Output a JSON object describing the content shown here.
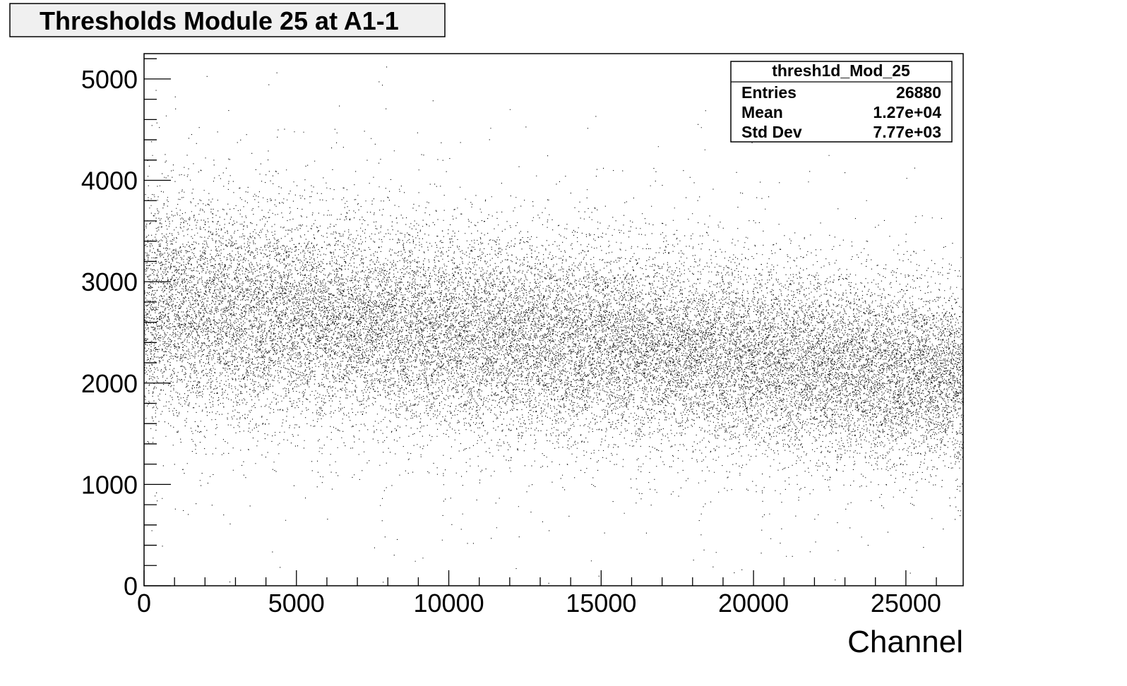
{
  "title": "Thresholds Module 25 at A1-1",
  "stats": {
    "name": "thresh1d_Mod_25",
    "rows": [
      {
        "label": "Entries",
        "value": "26880"
      },
      {
        "label": "Mean",
        "value": "1.27e+04"
      },
      {
        "label": "Std Dev",
        "value": "7.77e+03"
      }
    ]
  },
  "chart_data": {
    "type": "scatter",
    "title": "Thresholds Module 25 at A1-1",
    "xlabel": "Channel",
    "ylabel": "",
    "xlim": [
      0,
      26880
    ],
    "ylim": [
      0,
      5250
    ],
    "x_ticks": [
      0,
      5000,
      10000,
      15000,
      20000,
      25000
    ],
    "y_ticks": [
      0,
      1000,
      2000,
      3000,
      4000,
      5000
    ],
    "x_tick_labels": [
      "0",
      "5000",
      "10000",
      "15000",
      "20000",
      "25000"
    ],
    "y_tick_labels": [
      "0",
      "1000",
      "2000",
      "3000",
      "4000",
      "5000"
    ],
    "grid": false,
    "n_points": 26880,
    "trend": {
      "x": [
        0,
        5000,
        10000,
        15000,
        20000,
        25000,
        26880
      ],
      "y_center": [
        2750,
        2650,
        2500,
        2400,
        2250,
        2100,
        2050
      ],
      "y_spread": [
        550,
        500,
        480,
        470,
        450,
        430,
        420
      ]
    },
    "marker_color": "#000000"
  }
}
